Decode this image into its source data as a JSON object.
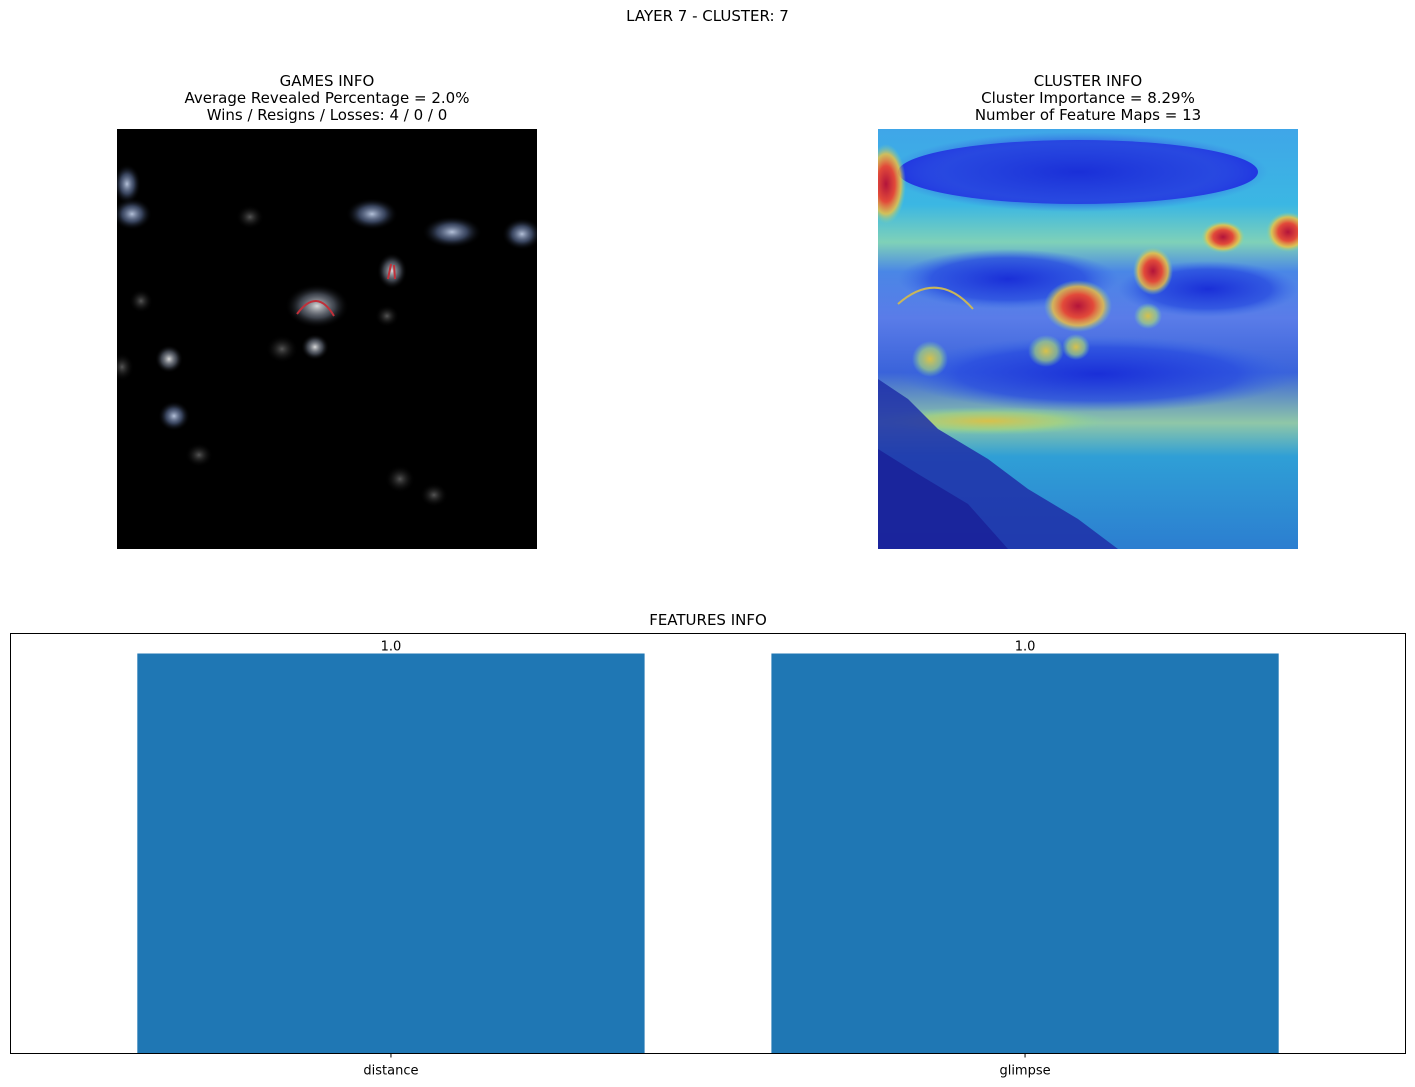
{
  "figure": {
    "title": "LAYER 7 - CLUSTER: 7"
  },
  "games_panel": {
    "title": "GAMES INFO",
    "line1": "Average Revealed Percentage = 2.0%",
    "line2": "Wins / Resigns / Losses: 4 / 0 / 0"
  },
  "cluster_panel": {
    "title": "CLUSTER INFO",
    "line1": "Cluster Importance = 8.29%",
    "line2": "Number of Feature Maps = 13"
  },
  "colors": {
    "bar": "#1f77b4"
  },
  "chart_data": {
    "type": "bar",
    "title": "FEATURES INFO",
    "categories": [
      "distance",
      "glimpse"
    ],
    "values": [
      1.0,
      1.0
    ],
    "value_labels": [
      "1.0",
      "1.0"
    ],
    "ylim": [
      0,
      1.05
    ],
    "grid": false
  }
}
